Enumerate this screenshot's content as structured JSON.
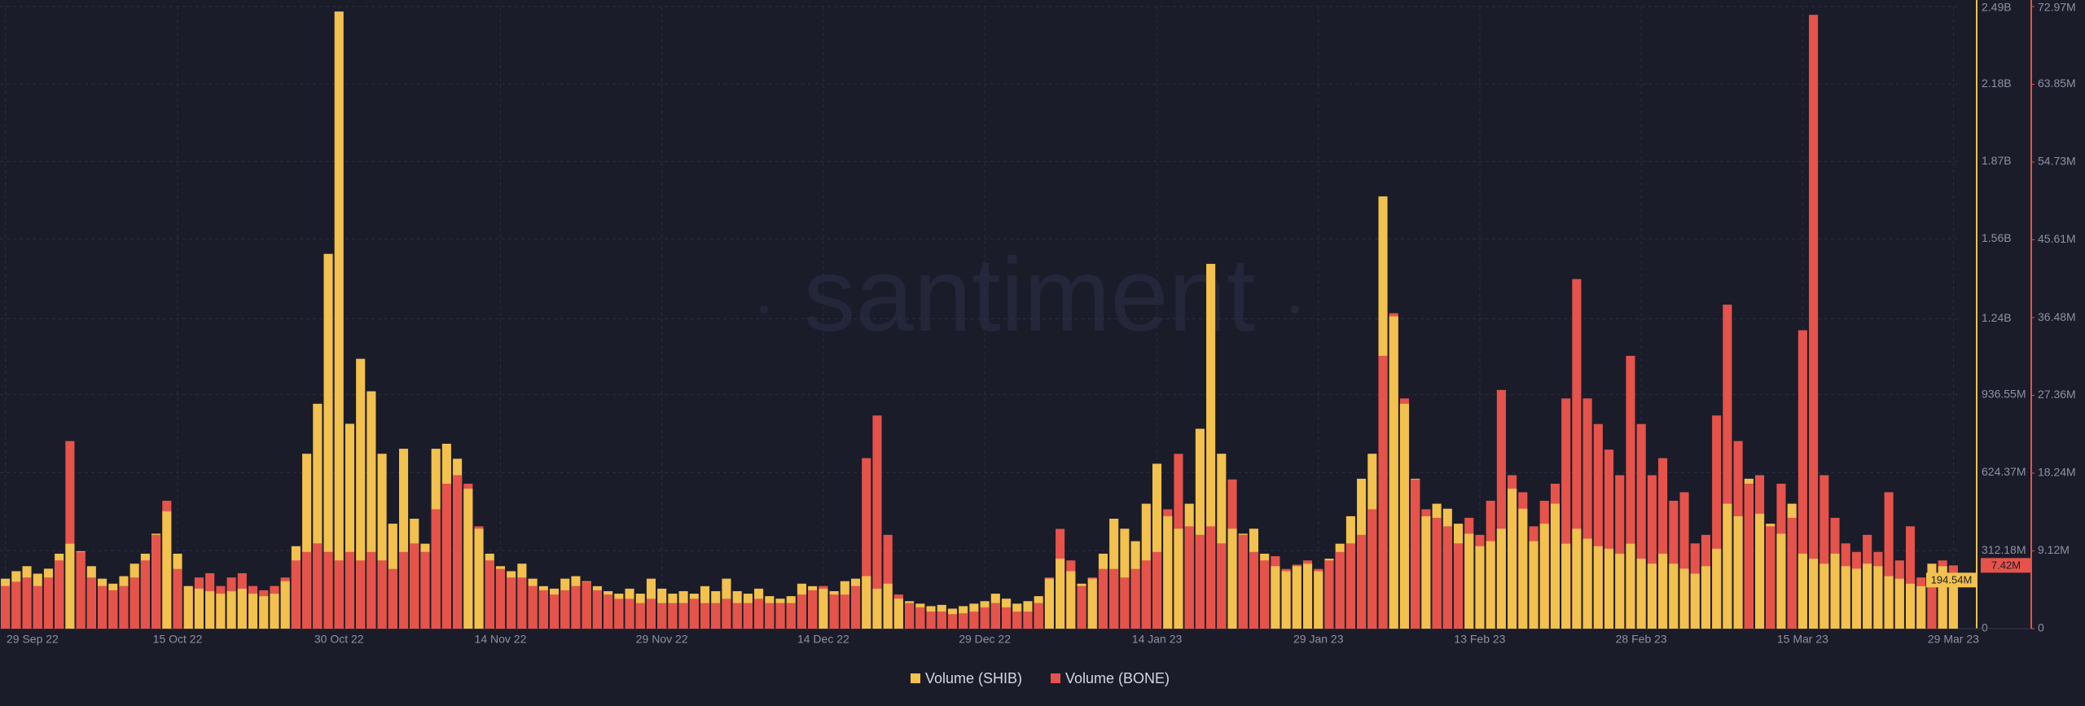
{
  "chart_data": {
    "type": "bar",
    "watermark": "santiment",
    "categories": [
      "29 Sep 22",
      null,
      null,
      null,
      null,
      null,
      null,
      null,
      null,
      null,
      null,
      null,
      null,
      null,
      null,
      null,
      "15 Oct 22",
      null,
      null,
      null,
      null,
      null,
      null,
      null,
      null,
      null,
      null,
      null,
      null,
      null,
      null,
      "30 Oct 22",
      null,
      null,
      null,
      null,
      null,
      null,
      null,
      null,
      null,
      null,
      null,
      null,
      null,
      null,
      "14 Nov 22",
      null,
      null,
      null,
      null,
      null,
      null,
      null,
      null,
      null,
      null,
      null,
      null,
      null,
      null,
      "29 Nov 22",
      null,
      null,
      null,
      null,
      null,
      null,
      null,
      null,
      null,
      null,
      null,
      null,
      null,
      null,
      "14 Dec 22",
      null,
      null,
      null,
      null,
      null,
      null,
      null,
      null,
      null,
      null,
      null,
      null,
      null,
      null,
      "29 Dec 22",
      null,
      null,
      null,
      null,
      null,
      null,
      null,
      null,
      null,
      null,
      null,
      null,
      null,
      null,
      null,
      "14 Jan 23",
      null,
      null,
      null,
      null,
      null,
      null,
      null,
      null,
      null,
      null,
      null,
      null,
      null,
      null,
      "29 Jan 23",
      null,
      null,
      null,
      null,
      null,
      null,
      null,
      null,
      null,
      null,
      null,
      null,
      null,
      null,
      "13 Feb 23",
      null,
      null,
      null,
      null,
      null,
      null,
      null,
      null,
      null,
      null,
      null,
      null,
      null,
      null,
      "28 Feb 23",
      null,
      null,
      null,
      null,
      null,
      null,
      null,
      null,
      null,
      null,
      null,
      null,
      null,
      null,
      "15 Mar 23",
      null,
      null,
      null,
      null,
      null,
      null,
      null,
      null,
      null,
      null,
      null,
      null,
      null,
      "29 Mar 23"
    ],
    "series": [
      {
        "name": "Volume (SHIB)",
        "color": "#f2c14e",
        "axis": "y",
        "values": [
          200,
          230,
          250,
          220,
          240,
          300,
          340,
          310,
          250,
          200,
          180,
          210,
          260,
          300,
          380,
          470,
          300,
          170,
          160,
          150,
          140,
          150,
          160,
          140,
          130,
          140,
          190,
          330,
          700,
          900,
          1500,
          2470,
          820,
          1080,
          950,
          700,
          420,
          720,
          440,
          340,
          720,
          740,
          680,
          560,
          400,
          300,
          250,
          230,
          260,
          200,
          170,
          160,
          200,
          210,
          190,
          170,
          150,
          140,
          160,
          140,
          200,
          160,
          140,
          150,
          140,
          170,
          150,
          200,
          150,
          140,
          160,
          130,
          120,
          130,
          180,
          170,
          160,
          150,
          190,
          200,
          210,
          160,
          180,
          120,
          110,
          100,
          90,
          95,
          80,
          90,
          100,
          110,
          140,
          120,
          100,
          110,
          130,
          200,
          280,
          230,
          180,
          200,
          300,
          440,
          400,
          350,
          500,
          660,
          450,
          400,
          500,
          800,
          1460,
          700,
          400,
          380,
          400,
          300,
          250,
          230,
          250,
          260,
          230,
          280,
          340,
          450,
          600,
          700,
          1730,
          1250,
          900,
          600,
          450,
          500,
          480,
          420,
          380,
          330,
          350,
          400,
          560,
          480,
          350,
          420,
          500,
          340,
          400,
          360,
          330,
          320,
          300,
          340,
          280,
          260,
          300,
          260,
          240,
          220,
          250,
          320,
          500,
          450,
          600,
          460,
          420,
          380,
          500,
          300,
          280,
          260,
          300,
          250,
          240,
          260,
          250,
          210,
          200,
          180,
          170,
          260,
          250,
          194.54
        ],
        "value_labels": [
          null,
          null,
          null,
          null,
          null,
          null,
          null,
          null,
          null,
          null,
          null,
          null,
          null,
          null,
          null,
          null,
          null,
          null,
          null,
          null,
          null,
          null,
          null,
          null,
          null,
          null,
          null,
          null,
          null,
          null,
          null,
          null,
          null,
          null,
          null,
          null,
          null,
          null,
          null,
          null,
          null,
          null,
          null,
          null,
          null,
          null,
          null,
          null,
          null,
          null,
          null,
          null,
          null,
          null,
          null,
          null,
          null,
          null,
          null,
          null,
          null,
          null,
          null,
          null,
          null,
          null,
          null,
          null,
          null,
          null,
          null,
          null,
          null,
          null,
          null,
          null,
          null,
          null,
          null,
          null,
          null,
          null,
          null,
          null,
          null,
          null,
          null,
          null,
          null,
          null,
          null,
          null,
          null,
          null,
          null,
          null,
          null,
          null,
          null,
          null,
          null,
          null,
          null,
          null,
          null,
          null,
          null,
          null,
          null,
          null,
          null,
          null,
          null,
          null,
          null,
          null,
          null,
          null,
          null,
          null,
          null,
          null,
          null,
          null,
          null,
          null,
          null,
          null,
          null,
          null,
          null,
          null,
          null,
          null,
          null,
          null,
          null,
          null,
          null,
          null,
          null,
          null,
          null,
          null,
          null,
          null,
          null,
          null,
          null,
          null,
          null,
          null,
          null,
          null,
          null,
          null,
          null,
          null,
          null,
          null,
          null,
          null,
          null,
          null,
          null,
          null,
          null,
          null,
          null,
          null,
          null,
          null,
          null,
          null,
          null,
          null,
          null,
          null,
          null,
          null,
          null,
          "194.54M"
        ]
      },
      {
        "name": "Volume (BONE)",
        "color": "#e5534b",
        "axis": "y2",
        "values": [
          5,
          5.5,
          6,
          5,
          6,
          8,
          22,
          9,
          6,
          5,
          4.5,
          5,
          6,
          8,
          11,
          15,
          7,
          5,
          6,
          6.5,
          5,
          6,
          6.5,
          5,
          4.5,
          5,
          6,
          8,
          9,
          10,
          9,
          8,
          9,
          8,
          9,
          8,
          7,
          9,
          10,
          9,
          14,
          17,
          18,
          17,
          12,
          8,
          7,
          6,
          6,
          5,
          4.5,
          4,
          4.5,
          5,
          5.5,
          4.5,
          4,
          3.5,
          3.5,
          3,
          3.5,
          3,
          3,
          3,
          3.5,
          3,
          3,
          3.5,
          3,
          3,
          3.5,
          3,
          3,
          3,
          4,
          4.5,
          5,
          4,
          4,
          5,
          20,
          25,
          11,
          4,
          3,
          2.5,
          2,
          2,
          1.7,
          1.8,
          2,
          2.5,
          3,
          2.5,
          2,
          2,
          3,
          6,
          11.7,
          8,
          5,
          6,
          7,
          7,
          6,
          7,
          8,
          9,
          14,
          20.5,
          12,
          11,
          12,
          10,
          17.5,
          11,
          9,
          8,
          8.5,
          7,
          7.5,
          8,
          7,
          8,
          9,
          10,
          11,
          14,
          32,
          37,
          27,
          17.5,
          14,
          13,
          12,
          10,
          13,
          11,
          15,
          28,
          18,
          16,
          12,
          15,
          17,
          27,
          41,
          27,
          24,
          21,
          18,
          32,
          24,
          18,
          20,
          15,
          16,
          10,
          11,
          25,
          38,
          22,
          17,
          18,
          12,
          17,
          13,
          35,
          72,
          18,
          13,
          10,
          9,
          11,
          9,
          16,
          8,
          12,
          6,
          5,
          8,
          7.42
        ],
        "value_labels": [
          null,
          null,
          null,
          null,
          null,
          null,
          null,
          null,
          null,
          null,
          null,
          null,
          null,
          null,
          null,
          null,
          null,
          null,
          null,
          null,
          null,
          null,
          null,
          null,
          null,
          null,
          null,
          null,
          null,
          null,
          null,
          null,
          null,
          null,
          null,
          null,
          null,
          null,
          null,
          null,
          null,
          null,
          null,
          null,
          null,
          null,
          null,
          null,
          null,
          null,
          null,
          null,
          null,
          null,
          null,
          null,
          null,
          null,
          null,
          null,
          null,
          null,
          null,
          null,
          null,
          null,
          null,
          null,
          null,
          null,
          null,
          null,
          null,
          null,
          null,
          null,
          null,
          null,
          null,
          null,
          null,
          null,
          null,
          null,
          null,
          null,
          null,
          null,
          null,
          null,
          null,
          null,
          null,
          null,
          null,
          null,
          null,
          null,
          null,
          null,
          null,
          null,
          null,
          null,
          null,
          null,
          null,
          null,
          null,
          null,
          null,
          null,
          null,
          null,
          null,
          null,
          null,
          null,
          null,
          null,
          null,
          null,
          null,
          null,
          null,
          null,
          null,
          null,
          null,
          null,
          null,
          null,
          null,
          null,
          null,
          null,
          null,
          null,
          null,
          null,
          null,
          null,
          null,
          null,
          null,
          null,
          null,
          null,
          null,
          null,
          null,
          null,
          null,
          null,
          null,
          null,
          null,
          null,
          null,
          null,
          null,
          null,
          null,
          null,
          null,
          null,
          null,
          null,
          null,
          null,
          null,
          null,
          null,
          null,
          null,
          null,
          null,
          null,
          null,
          null,
          null,
          "7.42M"
        ]
      }
    ],
    "ylim": [
      0,
      2490
    ],
    "yticks": [
      0,
      {
        "value": 312.18,
        "label": "312.18M"
      },
      {
        "value": 624.37,
        "label": "624.37M"
      },
      {
        "value": 936.55,
        "label": "936.55M"
      },
      {
        "value": 1240,
        "label": "1.24B"
      },
      {
        "value": 1560,
        "label": "1.56B"
      },
      {
        "value": 1870,
        "label": "1.87B"
      },
      {
        "value": 2180,
        "label": "2.18B"
      },
      {
        "value": 2490,
        "label": "2.49B"
      }
    ],
    "y2lim": [
      0,
      72.97
    ],
    "y2ticks": [
      0,
      {
        "value": 9.12,
        "label": "9.12M"
      },
      {
        "value": 18.24,
        "label": "18.24M"
      },
      {
        "value": 27.36,
        "label": "27.36M"
      },
      {
        "value": 36.48,
        "label": "36.48M"
      },
      {
        "value": 45.61,
        "label": "45.61M"
      },
      {
        "value": 54.73,
        "label": "54.73M"
      },
      {
        "value": 63.85,
        "label": "63.85M"
      },
      {
        "value": 72.97,
        "label": "72.97M"
      }
    ],
    "grid": true
  }
}
